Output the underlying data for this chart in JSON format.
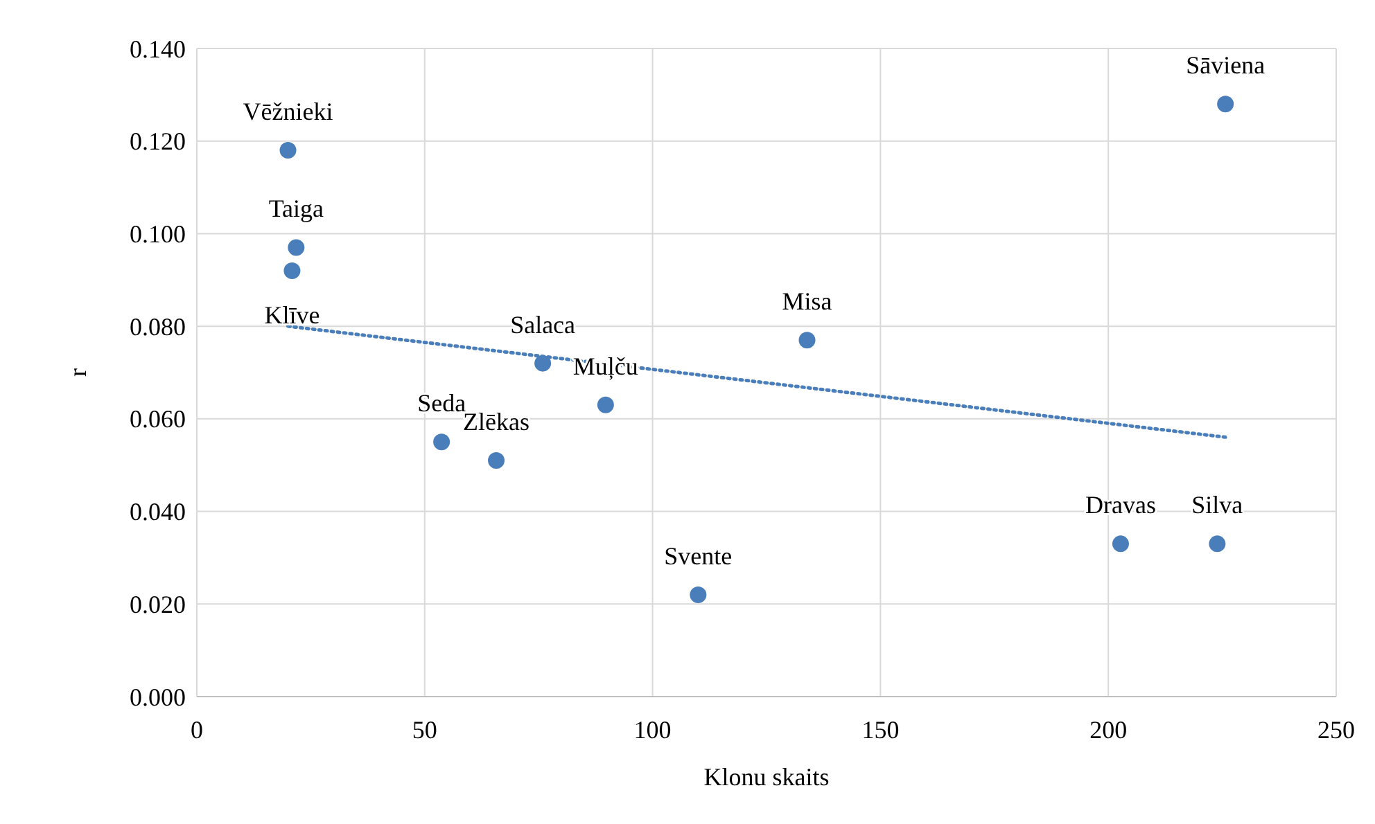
{
  "chart_data": {
    "type": "scatter",
    "xlabel": "Klonu skaits",
    "ylabel": "r",
    "xlim": [
      0,
      250
    ],
    "xticks": [
      0,
      50,
      100,
      150,
      200,
      250
    ],
    "ylim": [
      0,
      0.14
    ],
    "yticks": [
      {
        "value": 0,
        "label": "0.000"
      },
      {
        "value": 0.02,
        "label": "0.020"
      },
      {
        "value": 0.04,
        "label": "0.040"
      },
      {
        "value": 0.06,
        "label": "0.060"
      },
      {
        "value": 0.08,
        "label": "0.080"
      },
      {
        "value": 0.1,
        "label": "0.100"
      },
      {
        "value": 0.12,
        "label": "0.120"
      },
      {
        "value": 0.14,
        "label": "0.140"
      }
    ],
    "grid": true,
    "series": [
      {
        "color": "#4a7ebb",
        "marker": "circle",
        "x": [
          20,
          21.8,
          20.9,
          75.9,
          89.7,
          133.9,
          53.7,
          65.7,
          110,
          202.7,
          223.9,
          225.7
        ],
        "values": [
          0.118,
          0.097,
          0.092,
          0.072,
          0.063,
          0.077,
          0.055,
          0.051,
          0.022,
          0.033,
          0.033,
          0.128
        ]
      },
      {
        "type": "line",
        "color": "#4a7ebb",
        "line_style": "dotted",
        "x": [
          20,
          226
        ],
        "values": [
          0.08,
          0.056
        ]
      }
    ],
    "annotations": [
      {
        "text": "Vēžnieki",
        "x": 20,
        "y": 0.118
      },
      {
        "text": "Taiga",
        "x": 21.8,
        "y": 0.097
      },
      {
        "text": "Klīve",
        "x": 20.9,
        "y": 0.092
      },
      {
        "text": "Salaca",
        "x": 75.9,
        "y": 0.072
      },
      {
        "text": "Muļču",
        "x": 89.7,
        "y": 0.063
      },
      {
        "text": "Misa",
        "x": 133.9,
        "y": 0.077
      },
      {
        "text": "Seda",
        "x": 53.7,
        "y": 0.055
      },
      {
        "text": "Zlēkas",
        "x": 65.7,
        "y": 0.051
      },
      {
        "text": "Svente",
        "x": 110,
        "y": 0.022
      },
      {
        "text": "Dravas",
        "x": 202.7,
        "y": 0.033
      },
      {
        "text": "Silva",
        "x": 223.9,
        "y": 0.033
      },
      {
        "text": "Sāviena",
        "x": 225.7,
        "y": 0.128
      }
    ]
  }
}
